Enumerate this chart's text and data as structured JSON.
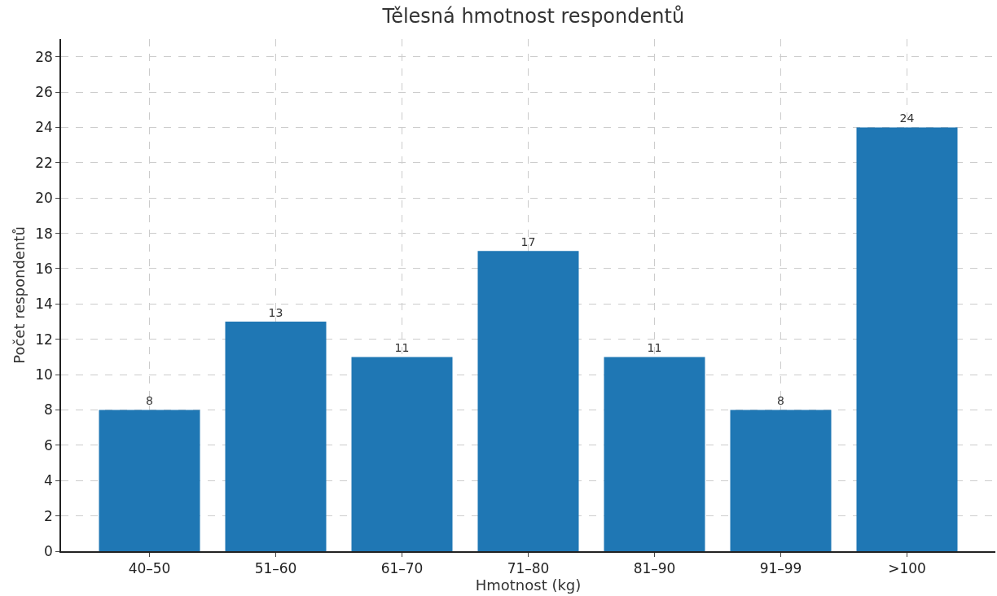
{
  "chart_data": {
    "type": "bar",
    "title": "Tělesná hmotnost respondentů",
    "xlabel": "Hmotnost (kg)",
    "ylabel": "Počet respondentů",
    "categories": [
      "40–50",
      "51–60",
      "61–70",
      "71–80",
      "81–90",
      "91–99",
      ">100"
    ],
    "values": [
      8,
      13,
      11,
      17,
      11,
      8,
      24
    ],
    "color": "#1f77b4",
    "ylim": [
      0,
      29
    ],
    "yticks": [
      0,
      2,
      4,
      6,
      8,
      10,
      12,
      14,
      16,
      18,
      20,
      22,
      24,
      26,
      28
    ],
    "grid": true,
    "data_labels": true
  }
}
